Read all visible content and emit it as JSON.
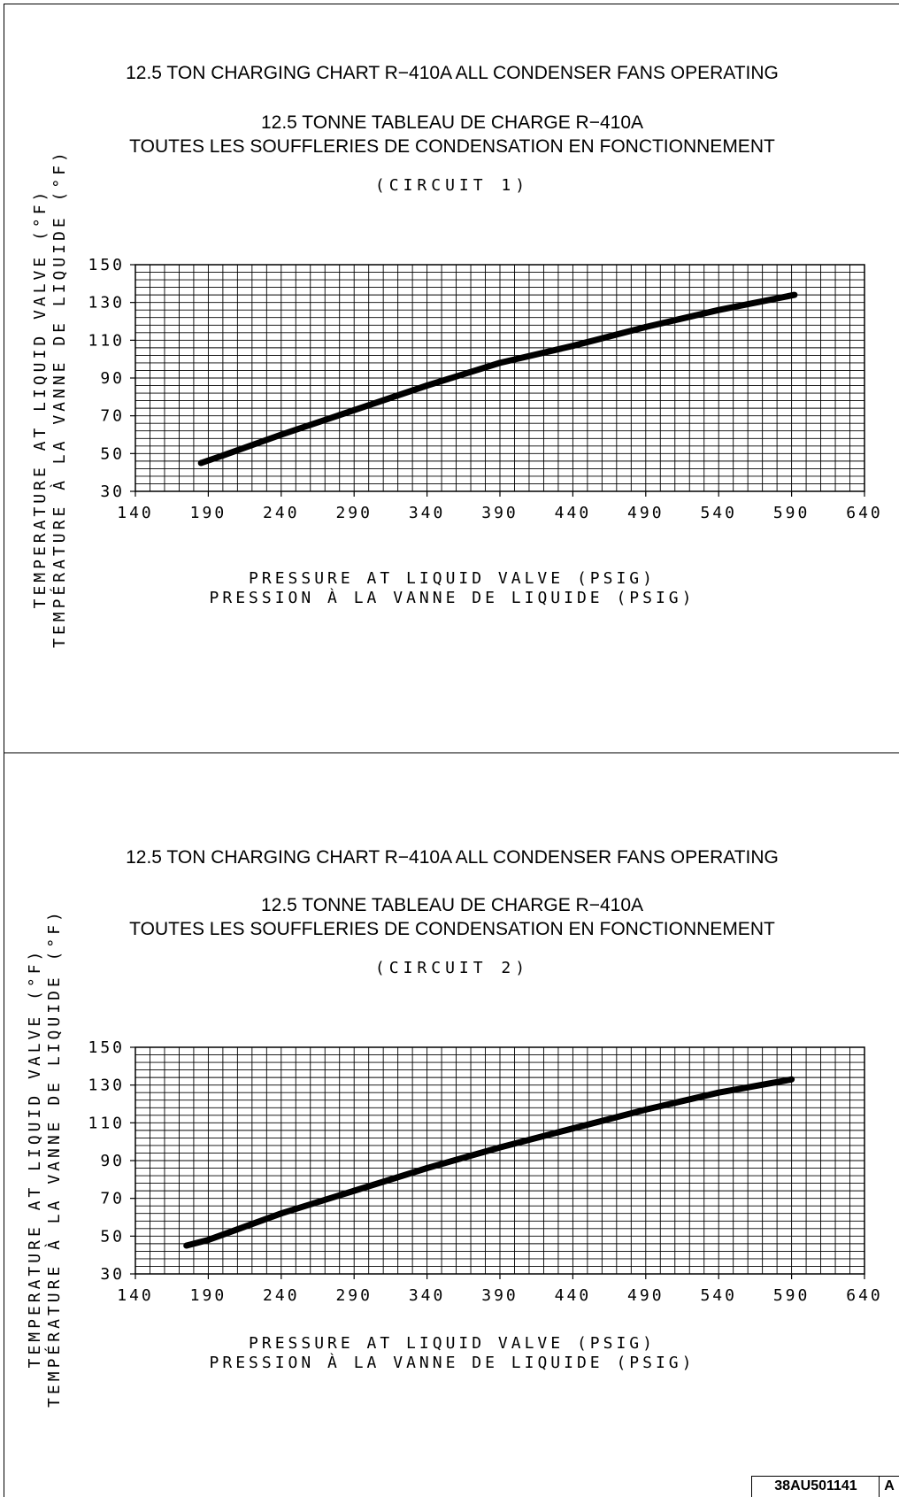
{
  "charts": [
    {
      "title_en": "12.5 TON CHARGING CHART R−410A ALL CONDENSER FANS OPERATING",
      "title_fr_line1": "12.5 TONNE TABLEAU DE CHARGE R−410A",
      "title_fr_line2": "TOUTES LES SOUFFLERIES DE CONDENSATION EN FONCTIONNEMENT",
      "circuit": "(CIRCUIT 1)",
      "xlabel_en": "PRESSURE AT LIQUID VALVE (PSIG)",
      "xlabel_fr": "PRESSION À LA VANNE DE LIQUIDE (PSIG)",
      "ylabel_en": "TEMPERATURE AT LIQUID VALVE (°F)",
      "ylabel_fr": "TEMPÉRATURE À LA VANNE DE LIQUIDE (°F)"
    },
    {
      "title_en": "12.5 TON CHARGING CHART R−410A ALL CONDENSER FANS OPERATING",
      "title_fr_line1": "12.5 TONNE TABLEAU DE CHARGE R−410A",
      "title_fr_line2": "TOUTES LES SOUFFLERIES DE CONDENSATION EN FONCTIONNEMENT",
      "circuit": "(CIRCUIT 2)",
      "xlabel_en": "PRESSURE AT LIQUID VALVE (PSIG)",
      "xlabel_fr": "PRESSION À LA VANNE DE LIQUIDE (PSIG)",
      "ylabel_en": "TEMPERATURE AT LIQUID VALVE (°F)",
      "ylabel_fr": "TEMPÉRATURE À LA VANNE DE LIQUIDE (°F)"
    }
  ],
  "chart_data": [
    {
      "type": "line",
      "title": "12.5 TON CHARGING CHART R−410A ALL CONDENSER FANS OPERATING (CIRCUIT 1)",
      "xlabel": "PRESSURE AT LIQUID VALVE (PSIG)",
      "ylabel": "TEMPERATURE AT LIQUID VALVE (°F)",
      "xlim": [
        140,
        640
      ],
      "ylim": [
        30,
        150
      ],
      "xticks": [
        "140",
        "190",
        "240",
        "290",
        "340",
        "390",
        "440",
        "490",
        "540",
        "590",
        "640"
      ],
      "yticks": [
        "30",
        "50",
        "70",
        "90",
        "110",
        "130",
        "150"
      ],
      "grid": true,
      "series": [
        {
          "x": [
            185,
            200,
            240,
            290,
            340,
            390,
            440,
            490,
            540,
            592
          ],
          "y": [
            45,
            49,
            60,
            73,
            86,
            98,
            107,
            117,
            126,
            134
          ]
        }
      ]
    },
    {
      "type": "line",
      "title": "12.5 TON CHARGING CHART R−410A ALL CONDENSER FANS OPERATING (CIRCUIT 2)",
      "xlabel": "PRESSURE AT LIQUID VALVE (PSIG)",
      "ylabel": "TEMPERATURE AT LIQUID VALVE (°F)",
      "xlim": [
        140,
        640
      ],
      "ylim": [
        30,
        150
      ],
      "xticks": [
        "140",
        "190",
        "240",
        "290",
        "340",
        "390",
        "440",
        "490",
        "540",
        "590",
        "640"
      ],
      "yticks": [
        "30",
        "50",
        "70",
        "90",
        "110",
        "130",
        "150"
      ],
      "grid": true,
      "series": [
        {
          "x": [
            175,
            190,
            240,
            290,
            340,
            390,
            440,
            490,
            540,
            590
          ],
          "y": [
            45,
            48,
            62,
            74,
            86,
            97,
            107,
            117,
            126,
            133
          ]
        }
      ]
    }
  ],
  "doc_number": "38AU501141",
  "doc_rev": "A"
}
